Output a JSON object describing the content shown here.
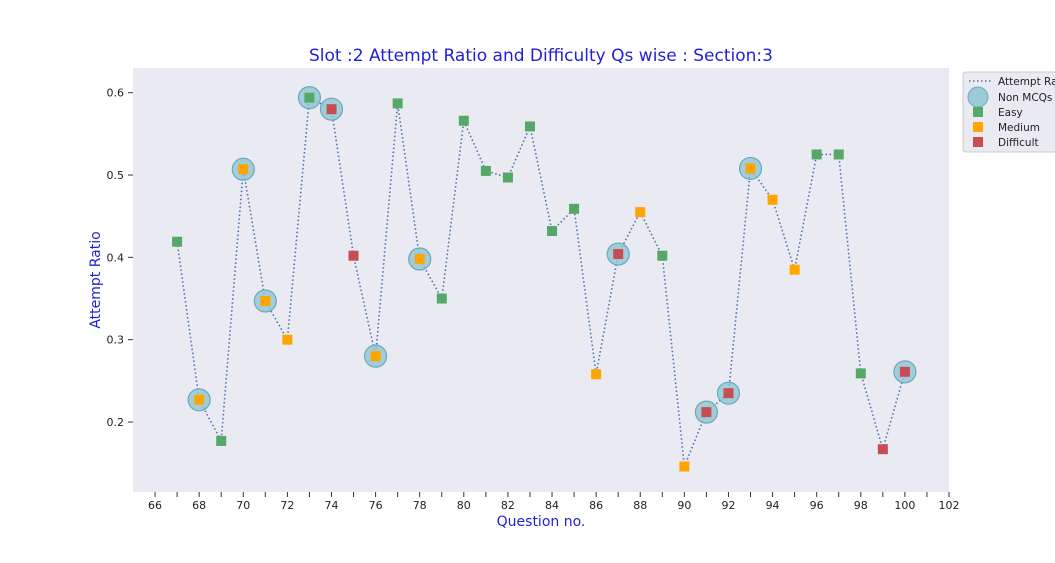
{
  "chart_data": {
    "type": "scatter",
    "title": "Slot :2 Attempt Ratio and Difficulty Qs wise :   Section:3",
    "xlabel": "Question no.",
    "ylabel": "Attempt Ratio",
    "xlim": [
      65,
      102
    ],
    "ylim": [
      0.115,
      0.63
    ],
    "xticks": [
      66,
      68,
      70,
      72,
      74,
      76,
      78,
      80,
      82,
      84,
      86,
      88,
      90,
      92,
      94,
      96,
      98,
      100,
      102
    ],
    "yticks": [
      0.2,
      0.3,
      0.4,
      0.5,
      0.6
    ],
    "grid": false,
    "legend_position": "top-right",
    "colors": {
      "background": "#eaeaf2",
      "line": "#4c72b0",
      "non_mcq": "#8ec6d3",
      "easy": "#55a868",
      "medium": "#ffa500",
      "difficult": "#c44e52"
    },
    "legend": [
      "Attempt Ratio",
      "Non MCQs",
      "Easy",
      "Medium",
      "Difficult"
    ],
    "points": [
      {
        "q": 67,
        "ratio": 0.419,
        "difficulty": "Easy",
        "non_mcq": false
      },
      {
        "q": 68,
        "ratio": 0.227,
        "difficulty": "Medium",
        "non_mcq": true
      },
      {
        "q": 69,
        "ratio": 0.177,
        "difficulty": "Easy",
        "non_mcq": false
      },
      {
        "q": 70,
        "ratio": 0.507,
        "difficulty": "Medium",
        "non_mcq": true
      },
      {
        "q": 71,
        "ratio": 0.347,
        "difficulty": "Medium",
        "non_mcq": true
      },
      {
        "q": 72,
        "ratio": 0.3,
        "difficulty": "Medium",
        "non_mcq": false
      },
      {
        "q": 73,
        "ratio": 0.594,
        "difficulty": "Easy",
        "non_mcq": true
      },
      {
        "q": 74,
        "ratio": 0.58,
        "difficulty": "Difficult",
        "non_mcq": true
      },
      {
        "q": 75,
        "ratio": 0.402,
        "difficulty": "Difficult",
        "non_mcq": false
      },
      {
        "q": 76,
        "ratio": 0.28,
        "difficulty": "Medium",
        "non_mcq": true
      },
      {
        "q": 77,
        "ratio": 0.587,
        "difficulty": "Easy",
        "non_mcq": false
      },
      {
        "q": 78,
        "ratio": 0.398,
        "difficulty": "Medium",
        "non_mcq": true
      },
      {
        "q": 79,
        "ratio": 0.35,
        "difficulty": "Easy",
        "non_mcq": false
      },
      {
        "q": 80,
        "ratio": 0.566,
        "difficulty": "Easy",
        "non_mcq": false
      },
      {
        "q": 81,
        "ratio": 0.505,
        "difficulty": "Easy",
        "non_mcq": false
      },
      {
        "q": 82,
        "ratio": 0.497,
        "difficulty": "Easy",
        "non_mcq": false
      },
      {
        "q": 83,
        "ratio": 0.559,
        "difficulty": "Easy",
        "non_mcq": false
      },
      {
        "q": 84,
        "ratio": 0.432,
        "difficulty": "Easy",
        "non_mcq": false
      },
      {
        "q": 85,
        "ratio": 0.459,
        "difficulty": "Easy",
        "non_mcq": false
      },
      {
        "q": 86,
        "ratio": 0.258,
        "difficulty": "Medium",
        "non_mcq": false
      },
      {
        "q": 87,
        "ratio": 0.404,
        "difficulty": "Difficult",
        "non_mcq": true
      },
      {
        "q": 88,
        "ratio": 0.455,
        "difficulty": "Medium",
        "non_mcq": false
      },
      {
        "q": 89,
        "ratio": 0.402,
        "difficulty": "Easy",
        "non_mcq": false
      },
      {
        "q": 90,
        "ratio": 0.146,
        "difficulty": "Medium",
        "non_mcq": false
      },
      {
        "q": 91,
        "ratio": 0.212,
        "difficulty": "Difficult",
        "non_mcq": true
      },
      {
        "q": 92,
        "ratio": 0.235,
        "difficulty": "Difficult",
        "non_mcq": true
      },
      {
        "q": 93,
        "ratio": 0.508,
        "difficulty": "Medium",
        "non_mcq": true
      },
      {
        "q": 94,
        "ratio": 0.47,
        "difficulty": "Medium",
        "non_mcq": false
      },
      {
        "q": 95,
        "ratio": 0.385,
        "difficulty": "Medium",
        "non_mcq": false
      },
      {
        "q": 96,
        "ratio": 0.525,
        "difficulty": "Easy",
        "non_mcq": false
      },
      {
        "q": 97,
        "ratio": 0.525,
        "difficulty": "Easy",
        "non_mcq": false
      },
      {
        "q": 98,
        "ratio": 0.259,
        "difficulty": "Easy",
        "non_mcq": false
      },
      {
        "q": 99,
        "ratio": 0.167,
        "difficulty": "Difficult",
        "non_mcq": false
      },
      {
        "q": 100,
        "ratio": 0.261,
        "difficulty": "Difficult",
        "non_mcq": true
      }
    ]
  }
}
